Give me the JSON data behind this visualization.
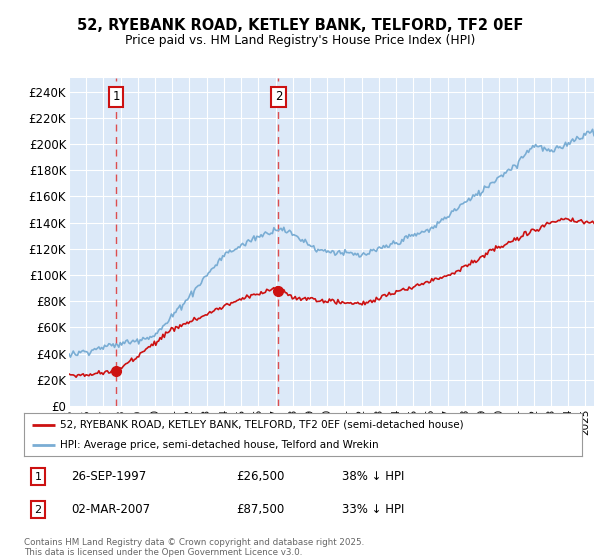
{
  "title": "52, RYEBANK ROAD, KETLEY BANK, TELFORD, TF2 0EF",
  "subtitle": "Price paid vs. HM Land Registry's House Price Index (HPI)",
  "ylim": [
    0,
    250000
  ],
  "yticks": [
    0,
    20000,
    40000,
    60000,
    80000,
    100000,
    120000,
    140000,
    160000,
    180000,
    200000,
    220000,
    240000
  ],
  "ytick_labels": [
    "£0",
    "£20K",
    "£40K",
    "£60K",
    "£80K",
    "£100K",
    "£120K",
    "£140K",
    "£160K",
    "£180K",
    "£200K",
    "£220K",
    "£240K"
  ],
  "fig_bg_color": "#ffffff",
  "plot_bg_color": "#dce9f8",
  "grid_color": "#ffffff",
  "hpi_color": "#7aadd4",
  "price_color": "#cc1111",
  "marker_color": "#cc1111",
  "sale1_date": 1997.73,
  "sale1_price": 26500,
  "sale2_date": 2007.17,
  "sale2_price": 87500,
  "legend_label_price": "52, RYEBANK ROAD, KETLEY BANK, TELFORD, TF2 0EF (semi-detached house)",
  "legend_label_hpi": "HPI: Average price, semi-detached house, Telford and Wrekin",
  "table_row1": [
    "1",
    "26-SEP-1997",
    "£26,500",
    "38% ↓ HPI"
  ],
  "table_row2": [
    "2",
    "02-MAR-2007",
    "£87,500",
    "33% ↓ HPI"
  ],
  "footer": "Contains HM Land Registry data © Crown copyright and database right 2025.\nThis data is licensed under the Open Government Licence v3.0.",
  "xmin": 1995,
  "xmax": 2025.5
}
